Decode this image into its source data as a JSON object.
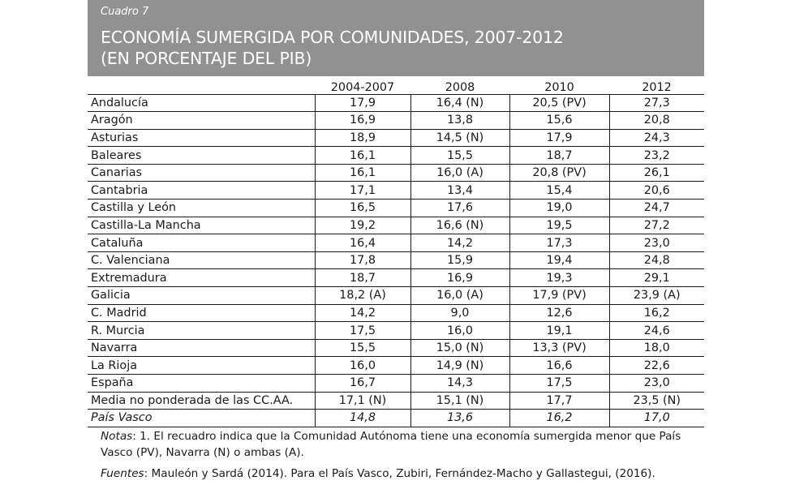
{
  "header": {
    "label": "Cuadro 7",
    "title_line1": "ECONOMÍA SUMERGIDA POR COMUNIDADES, 2007-2012",
    "title_line2": "(EN PORCENTAJE DEL PIB)"
  },
  "table": {
    "columns": [
      "",
      "2004-2007",
      "2008",
      "2010",
      "2012"
    ],
    "rows": [
      [
        "Andalucía",
        "17,9",
        "16,4 (N)",
        "20,5 (PV)",
        "27,3"
      ],
      [
        "Aragón",
        "16,9",
        "13,8",
        "15,6",
        "20,8"
      ],
      [
        "Asturias",
        "18,9",
        "14,5 (N)",
        "17,9",
        "24,3"
      ],
      [
        "Baleares",
        "16,1",
        "15,5",
        "18,7",
        "23,2"
      ],
      [
        "Canarias",
        "16,1",
        "16,0 (A)",
        "20,8 (PV)",
        "26,1"
      ],
      [
        "Cantabria",
        "17,1",
        "13,4",
        "15,4",
        "20,6"
      ],
      [
        "Castilla y León",
        "16,5",
        "17,6",
        "19,0",
        "24,7"
      ],
      [
        "Castilla-La Mancha",
        "19,2",
        "16,6 (N)",
        "19,5",
        "27,2"
      ],
      [
        "Cataluña",
        "16,4",
        "14,2",
        "17,3",
        "23,0"
      ],
      [
        "C. Valenciana",
        "17,8",
        "15,9",
        "19,4",
        "24,8"
      ],
      [
        "Extremadura",
        "18,7",
        "16,9",
        "19,3",
        "29,1"
      ],
      [
        "Galicia",
        "18,2 (A)",
        "16,0 (A)",
        "17,9 (PV)",
        "23,9 (A)"
      ],
      [
        "C. Madrid",
        "14,2",
        "9,0",
        "12,6",
        "16,2"
      ],
      [
        "R. Murcia",
        "17,5",
        "16,0",
        "19,1",
        "24,6"
      ],
      [
        "Navarra",
        "15,5",
        "15,0 (N)",
        "13,3 (PV)",
        "18,0"
      ],
      [
        "La Rioja",
        "16,0",
        "14,9 (N)",
        "16,6",
        "22,6"
      ],
      [
        "España",
        "16,7",
        "14,3",
        "17,5",
        "23,0"
      ],
      [
        "Media no ponderada de las CC.AA.",
        "17,1 (N)",
        "15,1 (N)",
        "17,7",
        "23,5 (N)"
      ],
      [
        "País Vasco",
        "14,8",
        "13,6",
        "16,2",
        "17,0"
      ]
    ]
  },
  "notes": {
    "label": "Notas",
    "text": ": 1. El recuadro indica que la Comunidad Autónoma tiene una economía sumergida menor que País Vasco (PV), Navarra (N) o ambas (A)."
  },
  "sources": {
    "label": "Fuentes",
    "text": ": Mauleón y Sardá (2014). Para el País Vasco, Zubiri, Fernández-Macho y Gallastegui, (2016)."
  }
}
